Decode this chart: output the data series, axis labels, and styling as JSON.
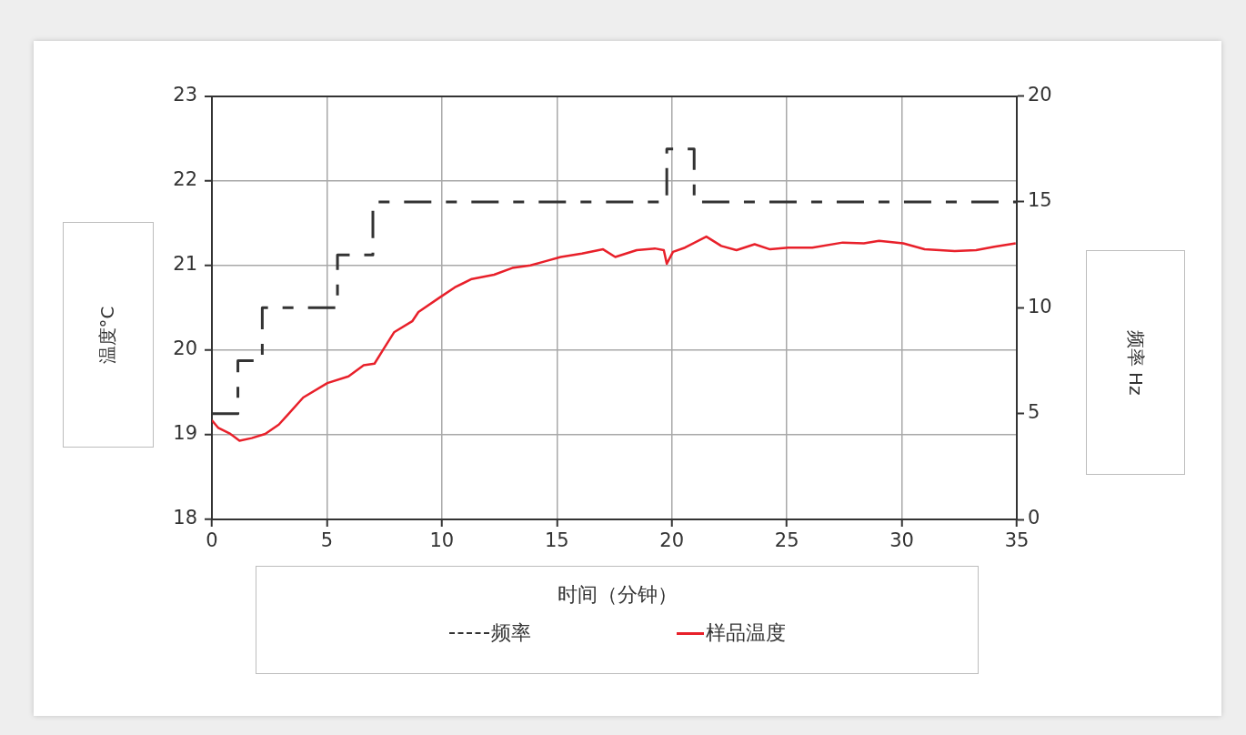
{
  "chart_data": {
    "type": "line",
    "xlabel": "时间（分钟）",
    "ylabel": "温度°C",
    "y2label": "频率 Hz",
    "xlim": [
      0,
      35
    ],
    "xticks": [
      0,
      5,
      10,
      15,
      20,
      25,
      30,
      35
    ],
    "ylim": [
      18,
      23
    ],
    "yticks": [
      18,
      19,
      20,
      21,
      22,
      23
    ],
    "y2lim": [
      0,
      20
    ],
    "y2ticks": [
      0,
      5,
      10,
      15,
      20
    ],
    "grid": true,
    "legend": "bottom",
    "marker": "none",
    "series": [
      {
        "name": "频率",
        "type": "step",
        "axis": "y2",
        "color": "#333333",
        "line_style": "dashed",
        "x": [
          0,
          1.13,
          2.19,
          5.46,
          7.0,
          19.78,
          20.97,
          35
        ],
        "values": [
          5,
          7.5,
          10,
          12.5,
          15,
          17.5,
          15,
          15
        ]
      },
      {
        "name": "样品温度",
        "type": "line",
        "color": "#e8202a",
        "line_style": "solid",
        "x": [
          0,
          0.28,
          0.8,
          1.2,
          1.73,
          2.32,
          2.91,
          3.31,
          3.97,
          5.02,
          5.94,
          6.6,
          7.07,
          7.46,
          7.92,
          8.71,
          8.98,
          9.9,
          10.56,
          11.3,
          12.27,
          13.06,
          13.85,
          14.51,
          15.17,
          16.09,
          17.01,
          17.54,
          18.47,
          19.26,
          19.65,
          19.78,
          20.05,
          20.57,
          21.5,
          22.15,
          22.81,
          23.6,
          24.27,
          25.06,
          26.11,
          27.43,
          28.35,
          29.01,
          30.06,
          30.99,
          32.3,
          33.23,
          34.02,
          34.95
        ],
        "values": [
          19.17,
          19.08,
          19.01,
          18.93,
          18.96,
          19.01,
          19.12,
          19.24,
          19.44,
          19.61,
          19.69,
          19.82,
          19.84,
          20.01,
          20.21,
          20.34,
          20.45,
          20.62,
          20.74,
          20.84,
          20.89,
          20.97,
          21.0,
          21.05,
          21.1,
          21.14,
          21.19,
          21.1,
          21.18,
          21.2,
          21.18,
          21.02,
          21.16,
          21.21,
          21.34,
          21.23,
          21.18,
          21.25,
          21.19,
          21.21,
          21.21,
          21.27,
          21.26,
          21.29,
          21.26,
          21.19,
          21.17,
          21.18,
          21.22,
          21.26
        ]
      }
    ]
  }
}
